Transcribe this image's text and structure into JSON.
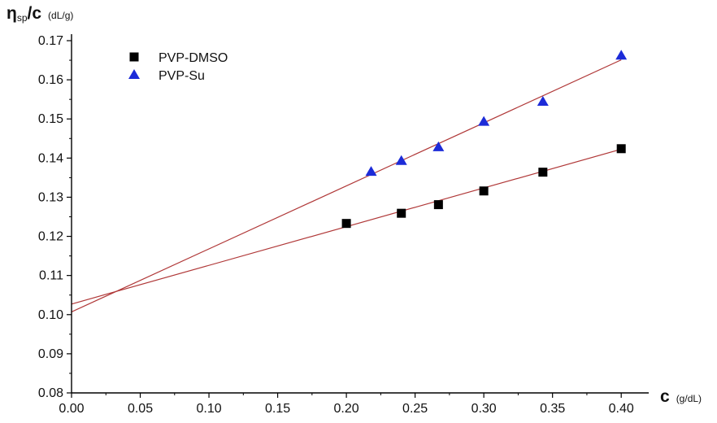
{
  "chart_data": {
    "type": "scatter",
    "xlabel": {
      "symbol": "c",
      "unit": "(g/dL)"
    },
    "ylabel": {
      "symbol_eta": "η",
      "symbol_sub": "sp",
      "symbol_rest": "/c",
      "unit": "(dL/g)"
    },
    "xlim": [
      0.0,
      0.42
    ],
    "ylim": [
      0.08,
      0.17
    ],
    "x_ticks": [
      0.0,
      0.05,
      0.1,
      0.15,
      0.2,
      0.25,
      0.3,
      0.35,
      0.4
    ],
    "x_tick_labels": [
      "0.00",
      "0.05",
      "0.10",
      "0.15",
      "0.20",
      "0.25",
      "0.30",
      "0.35",
      "0.40"
    ],
    "y_ticks": [
      0.08,
      0.09,
      0.1,
      0.11,
      0.12,
      0.13,
      0.14,
      0.15,
      0.16,
      0.17
    ],
    "y_tick_labels": [
      "0.08",
      "0.09",
      "0.10",
      "0.11",
      "0.12",
      "0.13",
      "0.14",
      "0.15",
      "0.16",
      "0.17"
    ],
    "grid": false,
    "legend_position": "top-left",
    "series": [
      {
        "name": "PVP-DMSO",
        "marker": "square",
        "color": "#000000",
        "x": [
          0.2,
          0.24,
          0.267,
          0.3,
          0.343,
          0.4
        ],
        "y": [
          0.1233,
          0.1259,
          0.1281,
          0.1316,
          0.1364,
          0.1424
        ],
        "fit": {
          "intercept": 0.1027,
          "slope": 0.0989,
          "color": "#b03838"
        }
      },
      {
        "name": "PVP-Su",
        "marker": "triangle",
        "color": "#1c2bd8",
        "x": [
          0.218,
          0.24,
          0.267,
          0.3,
          0.343,
          0.4
        ],
        "y": [
          0.1365,
          0.1393,
          0.1428,
          0.1493,
          0.1544,
          0.1662
        ],
        "fit": {
          "intercept": 0.1007,
          "slope": 0.161,
          "color": "#b03838"
        }
      }
    ]
  }
}
